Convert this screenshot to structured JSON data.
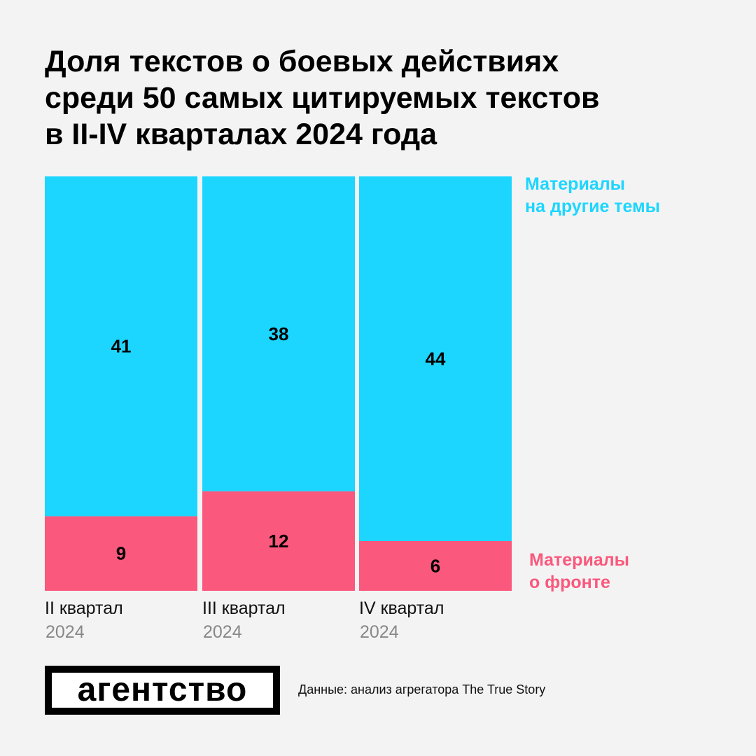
{
  "chart_data": {
    "type": "bar",
    "stacked": true,
    "title": [
      "Доля текстов о боевых действиях",
      "среди 50 самых цитируемых текстов",
      "в II-IV кварталах 2024 года"
    ],
    "categories": [
      {
        "label": "II квартал",
        "year": "2024"
      },
      {
        "label": "III квартал",
        "year": "2024"
      },
      {
        "label": "IV квартал",
        "year": "2024"
      }
    ],
    "series": [
      {
        "name": "Материалы о фронте",
        "legend": [
          "Материалы",
          "о фронте"
        ],
        "color": "#fa587d",
        "values": [
          9,
          12,
          6
        ]
      },
      {
        "name": "Материалы на другие темы",
        "legend": [
          "Материалы",
          "на другие темы"
        ],
        "color": "#1cd6ff",
        "values": [
          41,
          38,
          44
        ]
      }
    ],
    "ylim": [
      0,
      50
    ],
    "xlabel": "",
    "ylabel": ""
  },
  "footer": {
    "logo": "агентство",
    "source": "Данные: анализ агрегатора The True Story"
  }
}
